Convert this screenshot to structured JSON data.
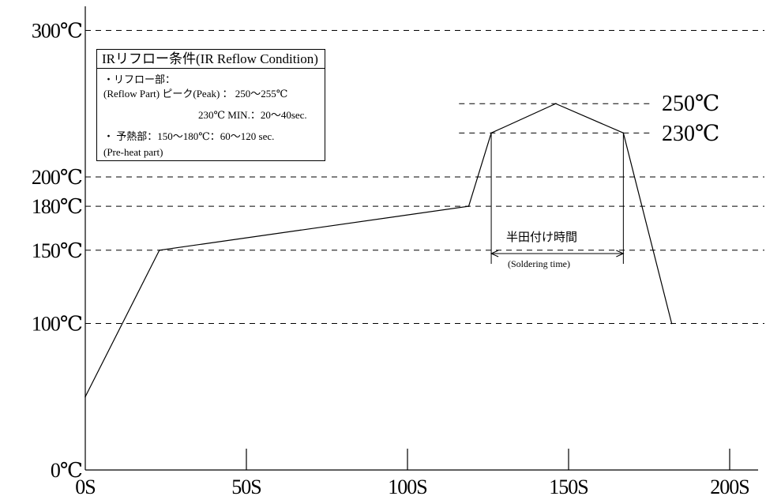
{
  "chart_data": {
    "type": "line",
    "title": "",
    "xlabel": "",
    "ylabel": "",
    "x_ticks": [
      {
        "value": 0,
        "label": "0S"
      },
      {
        "value": 50,
        "label": "50S"
      },
      {
        "value": 100,
        "label": "100S"
      },
      {
        "value": 150,
        "label": "150S"
      },
      {
        "value": 200,
        "label": "200S"
      }
    ],
    "y_ticks": [
      {
        "value": 0,
        "label": "0℃"
      },
      {
        "value": 100,
        "label": "100℃"
      },
      {
        "value": 150,
        "label": "150℃"
      },
      {
        "value": 180,
        "label": "180℃"
      },
      {
        "value": 200,
        "label": "200℃"
      },
      {
        "value": 300,
        "label": "300℃"
      }
    ],
    "reference_lines": [
      {
        "value": 300,
        "label": "300℃"
      },
      {
        "value": 250,
        "label": "250℃"
      },
      {
        "value": 230,
        "label": "230℃"
      },
      {
        "value": 200,
        "label": "200℃"
      },
      {
        "value": 180,
        "label": "180℃"
      },
      {
        "value": 150,
        "label": "150℃"
      },
      {
        "value": 100,
        "label": "100℃"
      }
    ],
    "series": [
      {
        "points": [
          {
            "x": 0,
            "y": 50
          },
          {
            "x": 23,
            "y": 150
          },
          {
            "x": 119,
            "y": 180
          },
          {
            "x": 126,
            "y": 230
          },
          {
            "x": 146,
            "y": 250
          },
          {
            "x": 167,
            "y": 230
          },
          {
            "x": 182,
            "y": 100
          }
        ]
      }
    ],
    "xlim": [
      0,
      207
    ],
    "ylim": [
      0,
      315
    ],
    "grid": false,
    "soldering_time": {
      "start": 126,
      "end": 167
    }
  },
  "legend": {
    "title": "IRリフロー条件(IR Reflow Condition)",
    "line1": "・リフロー部：",
    "line2": "(Reflow Part) ピーク(Peak) ： 250～255℃",
    "line3": "230℃ MIN.：20～40sec.",
    "line4": "・ 予熱部：150～180℃：60～120 sec.",
    "line5": "(Pre-heat part)"
  },
  "annotations": {
    "peak_250": "250℃",
    "peak_230": "230℃",
    "soldering_time_jp": "半田付け時間",
    "soldering_time_en": "(Soldering time)"
  }
}
